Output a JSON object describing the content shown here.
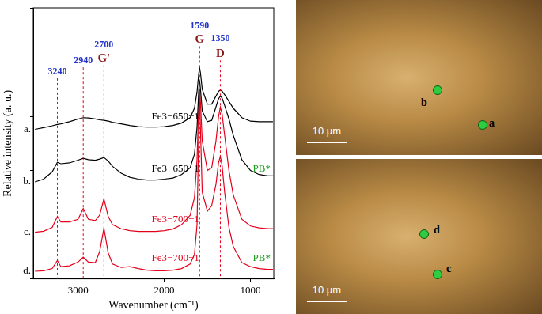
{
  "chart_data": {
    "type": "line",
    "x_label": "Wavenumber (cm⁻¹)",
    "y_label": "Relative intensity (a. u.)",
    "xlim": [
      3520,
      730
    ],
    "xticks": [
      3000,
      2000,
      1000
    ],
    "ylim": [
      0,
      10
    ],
    "yticks": [
      0,
      2,
      4,
      6,
      8,
      10
    ],
    "tick_labels": "x",
    "grid": false,
    "x": [
      3500,
      3400,
      3300,
      3240,
      3200,
      3100,
      3000,
      2940,
      2880,
      2800,
      2750,
      2700,
      2650,
      2600,
      2500,
      2400,
      2300,
      2200,
      2100,
      2000,
      1900,
      1800,
      1700,
      1650,
      1620,
      1600,
      1590,
      1580,
      1560,
      1500,
      1450,
      1400,
      1370,
      1350,
      1330,
      1300,
      1250,
      1200,
      1100,
      1000,
      900,
      800,
      740
    ],
    "series": [
      {
        "name": "Fe3−650−1",
        "letter": "a.",
        "color": "#000000",
        "values": [
          5.52,
          5.58,
          5.65,
          5.7,
          5.72,
          5.8,
          5.9,
          5.95,
          5.94,
          5.9,
          5.87,
          5.85,
          5.82,
          5.78,
          5.72,
          5.66,
          5.62,
          5.6,
          5.6,
          5.62,
          5.66,
          5.75,
          5.95,
          6.3,
          6.9,
          7.6,
          7.78,
          7.6,
          7.0,
          6.45,
          6.45,
          6.75,
          6.92,
          6.97,
          6.93,
          6.8,
          6.55,
          6.3,
          5.95,
          5.82,
          5.8,
          5.8,
          5.8
        ]
      },
      {
        "name": "Fe3−650−1",
        "letter": "b.",
        "color": "#000000",
        "note": "PB*",
        "values": [
          3.58,
          3.68,
          3.95,
          4.3,
          4.25,
          4.28,
          4.38,
          4.45,
          4.4,
          4.38,
          4.42,
          4.48,
          4.35,
          4.15,
          3.9,
          3.75,
          3.68,
          3.65,
          3.65,
          3.68,
          3.72,
          3.85,
          4.1,
          4.6,
          5.6,
          7.0,
          7.32,
          7.0,
          6.2,
          5.8,
          5.85,
          6.35,
          6.65,
          6.74,
          6.68,
          6.4,
          5.9,
          5.3,
          4.4,
          4.0,
          3.85,
          3.8,
          3.8
        ]
      },
      {
        "name": "Fe3−700−1",
        "letter": "c.",
        "color": "#e3001b",
        "values": [
          1.72,
          1.76,
          1.9,
          2.3,
          2.1,
          2.1,
          2.2,
          2.6,
          2.2,
          2.15,
          2.35,
          2.95,
          2.3,
          2.0,
          1.85,
          1.78,
          1.75,
          1.75,
          1.75,
          1.78,
          1.84,
          2.0,
          2.35,
          3.0,
          4.4,
          6.5,
          7.03,
          6.5,
          5.1,
          4.0,
          4.1,
          5.1,
          6.0,
          6.34,
          6.1,
          5.3,
          4.0,
          3.1,
          2.2,
          1.95,
          1.88,
          1.85,
          1.85
        ]
      },
      {
        "name": "Fe3−700−1",
        "letter": "d.",
        "color": "#e3001b",
        "note": "PB*",
        "values": [
          0.28,
          0.3,
          0.38,
          0.68,
          0.45,
          0.48,
          0.62,
          0.8,
          0.62,
          0.6,
          1.0,
          1.87,
          0.95,
          0.55,
          0.42,
          0.45,
          0.38,
          0.32,
          0.3,
          0.3,
          0.32,
          0.38,
          0.55,
          0.9,
          2.0,
          5.5,
          6.74,
          5.5,
          3.2,
          2.5,
          2.7,
          3.5,
          4.3,
          4.52,
          4.2,
          3.2,
          1.9,
          1.2,
          0.6,
          0.45,
          0.38,
          0.35,
          0.35
        ]
      }
    ],
    "annotations": [
      {
        "x": 3240,
        "y": 7.64,
        "label": "3240",
        "color": "#2233cc"
      },
      {
        "x": 2940,
        "y": 8.04,
        "label": "2940",
        "color": "#2233cc"
      },
      {
        "x": 2700,
        "y": 8.62,
        "label": "2700",
        "color": "#2233cc"
      },
      {
        "x": 2700,
        "y": 8.13,
        "label": "G'",
        "color": "#8b1a1a"
      },
      {
        "x": 1590,
        "y": 9.34,
        "label": "1590",
        "color": "#2233cc"
      },
      {
        "x": 1590,
        "y": 8.82,
        "label": "G",
        "color": "#8b1a1a"
      },
      {
        "x": 1350,
        "y": 8.85,
        "label": "1350",
        "color": "#2233cc"
      },
      {
        "x": 1350,
        "y": 8.3,
        "label": "D",
        "color": "#8b1a1a"
      }
    ],
    "micrographs": [
      {
        "scale_bar": "10 μm",
        "points": [
          "b",
          "a"
        ]
      },
      {
        "scale_bar": "10 μm",
        "points": [
          "d",
          "c"
        ]
      }
    ]
  }
}
